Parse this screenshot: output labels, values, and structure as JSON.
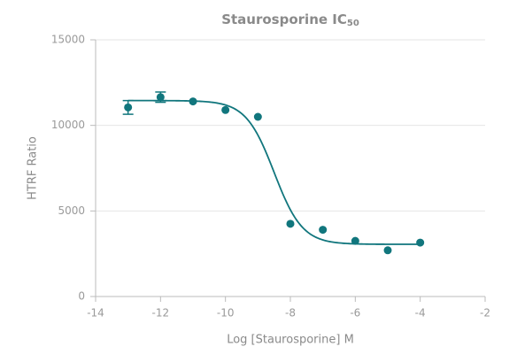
{
  "chart_data": {
    "type": "scatter",
    "title": {
      "text": "Staurosporine IC",
      "subscript": "50"
    },
    "x_label": "Log [Staurosporine] M",
    "y_label": "HTRF Ratio",
    "x": [
      -13,
      -12,
      -11,
      -10,
      -9,
      -8,
      -7,
      -6,
      -5,
      -4
    ],
    "values": [
      11050,
      11650,
      11400,
      10900,
      10500,
      4250,
      3900,
      3250,
      2700,
      3150
    ],
    "errors": [
      400,
      300,
      0,
      0,
      0,
      0,
      0,
      0,
      0,
      0
    ],
    "color": "#11767d",
    "fit": {
      "top": 11450,
      "bottom": 3050,
      "log_ic50": -8.5,
      "hill": 1.0,
      "xlim": [
        -13,
        -4
      ]
    },
    "xlim": [
      -14,
      -2
    ],
    "xticks": [
      -14,
      -12,
      -10,
      -8,
      -6,
      -4,
      -2
    ],
    "ylim": [
      0,
      15000
    ],
    "yticks": [
      0,
      5000,
      10000,
      15000
    ],
    "grid": true
  }
}
